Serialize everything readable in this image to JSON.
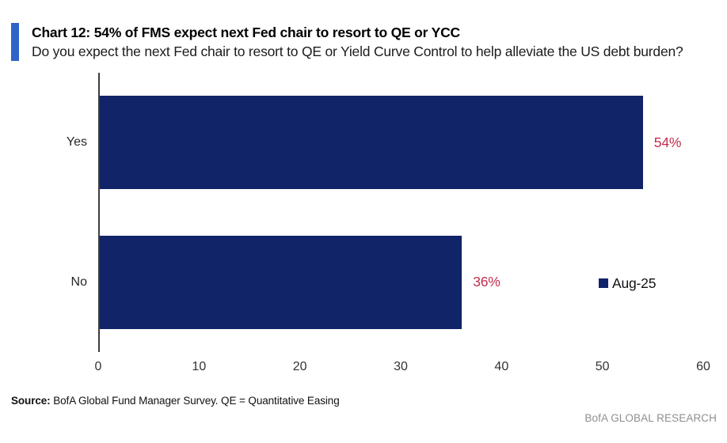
{
  "header": {
    "title": "Chart 12: 54% of FMS expect next Fed chair to resort to QE or YCC",
    "subtitle": "Do you expect the next Fed chair to resort to QE or Yield Curve Control to help alleviate the US debt burden?"
  },
  "chart_data": {
    "type": "bar",
    "orientation": "horizontal",
    "title": "Chart 12: 54% of FMS expect next Fed chair to resort to QE or YCC",
    "categories": [
      "Yes",
      "No"
    ],
    "series": [
      {
        "name": "Aug-25",
        "values": [
          54,
          36
        ]
      }
    ],
    "data_labels": [
      "54%",
      "36%"
    ],
    "xlim": [
      0,
      60
    ],
    "xticks": [
      "0",
      "10",
      "20",
      "30",
      "40",
      "50",
      "60"
    ],
    "grid": false,
    "legend_position": "right-middle",
    "colors": {
      "bar": "#112468",
      "data_label": "#c22f4f",
      "axis": "#3d3d3d",
      "accent": "#2e64c8"
    }
  },
  "footer": {
    "source_label": "Source:",
    "source_text": " BofA Global Fund Manager Survey. QE = Quantitative Easing",
    "brand": "BofA GLOBAL RESEARCH"
  }
}
